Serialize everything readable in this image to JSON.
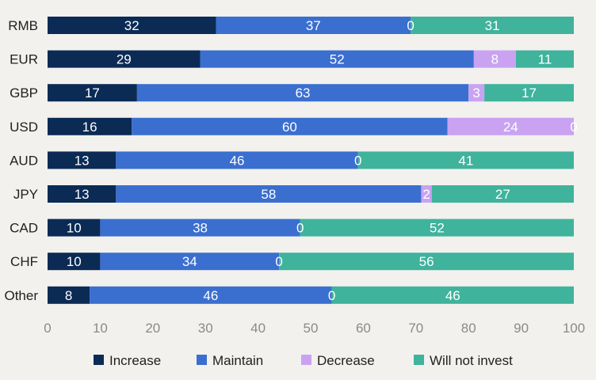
{
  "chart_data": {
    "type": "bar",
    "orientation": "horizontal",
    "stacked": true,
    "title": "",
    "xlabel": "",
    "ylabel": "",
    "xlim": [
      0,
      100
    ],
    "x_ticks": [
      0,
      10,
      20,
      30,
      40,
      50,
      60,
      70,
      80,
      90,
      100
    ],
    "grid": false,
    "legend_position": "bottom",
    "categories": [
      "RMB",
      "EUR",
      "GBP",
      "USD",
      "AUD",
      "JPY",
      "CAD",
      "CHF",
      "Other"
    ],
    "series": [
      {
        "name": "Increase",
        "color": "#0b2b55",
        "values": [
          32,
          29,
          17,
          16,
          13,
          13,
          10,
          10,
          8
        ]
      },
      {
        "name": "Maintain",
        "color": "#3a6fd0",
        "values": [
          37,
          52,
          63,
          60,
          46,
          58,
          38,
          34,
          46
        ]
      },
      {
        "name": "Decrease",
        "color": "#c9a3f2",
        "values": [
          0,
          8,
          3,
          24,
          0,
          2,
          0,
          0,
          0
        ]
      },
      {
        "name": "Will not invest",
        "color": "#3fb39c",
        "values": [
          31,
          11,
          17,
          0,
          41,
          27,
          52,
          56,
          46
        ]
      }
    ]
  }
}
